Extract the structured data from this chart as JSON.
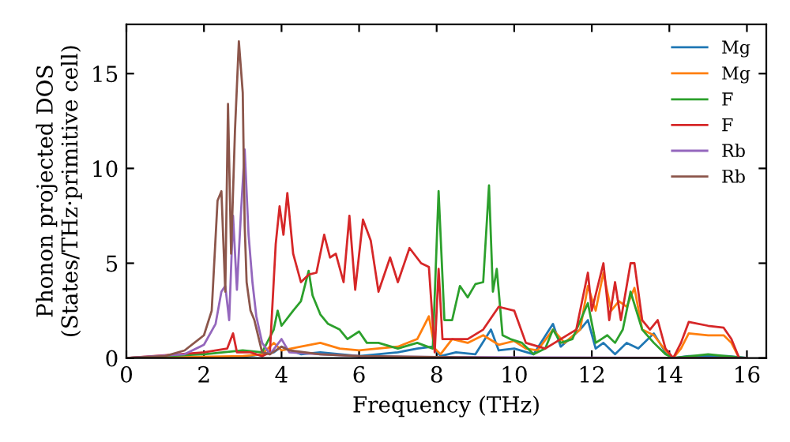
{
  "chart_data": {
    "type": "line",
    "xlabel": "Frequency (THz)",
    "ylabel": "Phonon projected DOS\n(States/THz·primitive cell)",
    "xlim": [
      0,
      16.5
    ],
    "ylim": [
      0,
      17.6
    ],
    "xticks": [
      0,
      2,
      4,
      6,
      8,
      10,
      12,
      14,
      16
    ],
    "yticks": [
      0,
      5,
      10,
      15
    ],
    "grid": false,
    "legend": "top right",
    "marker": "none",
    "line_style": "solid",
    "series": [
      {
        "name": "Mg",
        "color": "#1f77b4",
        "x": [
          0,
          3,
          3.8,
          4,
          4.5,
          5,
          6,
          7,
          7.5,
          7.9,
          8.1,
          8.5,
          9,
          9.4,
          9.6,
          10,
          10.5,
          11,
          11.2,
          11.7,
          11.9,
          12.1,
          12.3,
          12.6,
          12.9,
          13.2,
          13.6,
          13.9,
          14.1,
          14.5,
          15.5,
          16
        ],
        "values": [
          0,
          0.05,
          0.3,
          0.6,
          0.2,
          0.3,
          0.1,
          0.3,
          0.5,
          0.6,
          0.1,
          0.3,
          0.2,
          1.5,
          0.4,
          0.5,
          0.2,
          1.8,
          0.6,
          1.5,
          2.0,
          0.5,
          0.8,
          0.2,
          0.8,
          0.5,
          1.3,
          0.3,
          0,
          0.1,
          0.1,
          0
        ]
      },
      {
        "name": "Mg",
        "color": "#ff7f0e",
        "x": [
          0,
          3,
          3.5,
          3.8,
          4,
          4.5,
          5,
          5.5,
          6,
          7,
          7.5,
          7.8,
          7.95,
          8.1,
          8.4,
          8.8,
          9.2,
          9.6,
          10,
          10.3,
          10.6,
          11,
          11.3,
          11.7,
          11.9,
          12.1,
          12.3,
          12.5,
          12.7,
          12.9,
          13.1,
          13.3,
          13.6,
          13.9,
          14.1,
          14.3,
          14.5,
          15,
          15.4,
          15.6,
          15.8
        ],
        "values": [
          0,
          0.1,
          0.2,
          0.8,
          0.4,
          0.6,
          0.8,
          0.5,
          0.4,
          0.6,
          1.0,
          2.2,
          0.5,
          0.2,
          1.0,
          0.8,
          1.2,
          0.7,
          0.9,
          0.5,
          0.4,
          1.5,
          0.8,
          1.5,
          3.8,
          2.5,
          4.5,
          2.5,
          3.0,
          2.7,
          3.7,
          1.5,
          1.2,
          0.4,
          0,
          0.5,
          1.3,
          1.2,
          1.2,
          0.8,
          0
        ]
      },
      {
        "name": "F",
        "color": "#2ca02c",
        "x": [
          0,
          2,
          3,
          3.5,
          3.8,
          3.9,
          4,
          4.3,
          4.5,
          4.7,
          4.8,
          5,
          5.2,
          5.5,
          5.7,
          6,
          6.2,
          6.5,
          7,
          7.5,
          7.9,
          8.05,
          8.2,
          8.4,
          8.6,
          8.8,
          9,
          9.2,
          9.35,
          9.45,
          9.55,
          9.7,
          9.9,
          10.2,
          10.5,
          10.8,
          11,
          11.2,
          11.5,
          11.9,
          12.1,
          12.4,
          12.6,
          12.8,
          13,
          13.3,
          13.6,
          13.9,
          14.1,
          15,
          15.7,
          16
        ],
        "values": [
          0,
          0.2,
          0.4,
          0.3,
          1.5,
          2.5,
          1.7,
          2.5,
          3.0,
          4.6,
          3.3,
          2.3,
          1.8,
          1.5,
          1.0,
          1.4,
          0.8,
          0.8,
          0.5,
          0.8,
          0.5,
          8.8,
          2.0,
          2.0,
          3.8,
          3.2,
          3.9,
          4.0,
          9.1,
          3.5,
          4.7,
          1.2,
          1.0,
          0.8,
          0.2,
          0.5,
          1.5,
          0.8,
          1.0,
          2.9,
          0.8,
          1.2,
          0.8,
          1.5,
          3.5,
          1.5,
          0.8,
          0.2,
          0,
          0.2,
          0.05,
          0
        ]
      },
      {
        "name": "F",
        "color": "#d62728",
        "x": [
          0,
          2,
          2.6,
          2.75,
          2.85,
          3.2,
          3.5,
          3.7,
          3.85,
          3.95,
          4.05,
          4.15,
          4.3,
          4.5,
          4.7,
          4.9,
          5.1,
          5.25,
          5.4,
          5.6,
          5.75,
          5.9,
          6.1,
          6.3,
          6.5,
          6.8,
          7.0,
          7.3,
          7.6,
          7.8,
          7.95,
          8.05,
          8.15,
          8.4,
          8.8,
          9.2,
          9.6,
          10.0,
          10.3,
          10.8,
          11.2,
          11.6,
          11.9,
          12.0,
          12.3,
          12.45,
          12.6,
          12.75,
          13.0,
          13.1,
          13.3,
          13.5,
          13.7,
          13.9,
          14.1,
          14.3,
          14.5,
          15.0,
          15.4,
          15.6,
          15.8
        ],
        "values": [
          0,
          0.3,
          0.5,
          1.3,
          0.3,
          0.3,
          0.1,
          0.3,
          6.0,
          8.0,
          6.5,
          8.7,
          5.5,
          4.0,
          4.4,
          4.5,
          6.5,
          5.3,
          5.5,
          4.0,
          7.5,
          3.6,
          7.3,
          6.2,
          3.5,
          5.3,
          4.0,
          5.8,
          5.0,
          4.8,
          0.3,
          4.7,
          1.0,
          1.0,
          1.0,
          1.5,
          2.7,
          2.5,
          0.8,
          0.5,
          1.0,
          1.5,
          4.5,
          2.5,
          5.0,
          2.0,
          4.0,
          2.0,
          5.0,
          5.0,
          2.0,
          1.5,
          2.0,
          0.5,
          0,
          0.8,
          1.9,
          1.7,
          1.6,
          1.0,
          0
        ]
      },
      {
        "name": "Rb",
        "color": "#9467bd",
        "x": [
          0,
          1.5,
          2,
          2.3,
          2.45,
          2.55,
          2.65,
          2.75,
          2.85,
          2.95,
          3.05,
          3.15,
          3.25,
          3.35,
          3.5,
          3.7,
          4,
          4.2,
          5,
          6,
          8,
          16
        ],
        "values": [
          0,
          0.2,
          0.7,
          1.8,
          3.5,
          3.8,
          2.0,
          7.5,
          3.6,
          7.5,
          11,
          6.5,
          4,
          2.2,
          0.8,
          0.2,
          1.0,
          0.3,
          0.2,
          0.1,
          0.05,
          0
        ]
      },
      {
        "name": "Rb",
        "color": "#8c564b",
        "x": [
          0,
          1,
          1.5,
          2,
          2.2,
          2.35,
          2.45,
          2.55,
          2.62,
          2.7,
          2.8,
          2.9,
          3.0,
          3.05,
          3.1,
          3.2,
          3.3,
          3.5,
          3.7,
          4,
          4.2,
          5,
          6,
          8,
          10,
          16
        ],
        "values": [
          0,
          0.1,
          0.4,
          1.2,
          2.5,
          8.3,
          8.8,
          3.5,
          13.4,
          5.5,
          12,
          16.7,
          14,
          7,
          4,
          2.5,
          2.0,
          0.3,
          0.2,
          0.6,
          0.4,
          0.2,
          0.1,
          0.05,
          0,
          0
        ]
      }
    ]
  }
}
